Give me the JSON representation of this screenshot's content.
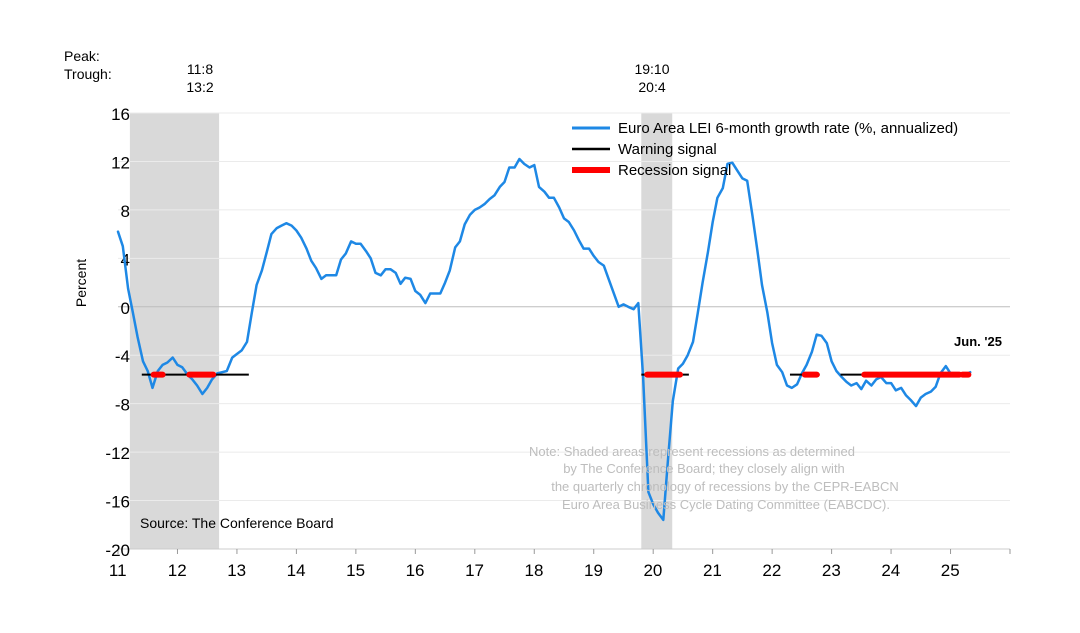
{
  "chart_data": {
    "type": "line",
    "ylabel": "Percent",
    "ylim": [
      -20,
      16
    ],
    "yticks": [
      16,
      12,
      8,
      4,
      0,
      -4,
      -8,
      -12,
      -16,
      -20
    ],
    "xlim": [
      2011,
      2026
    ],
    "xticks": [
      {
        "label": "11",
        "x": 2011.5
      },
      {
        "label": "12",
        "x": 2012.5
      },
      {
        "label": "13",
        "x": 2013.5
      },
      {
        "label": "14",
        "x": 2014.5
      },
      {
        "label": "15",
        "x": 2015.5
      },
      {
        "label": "16",
        "x": 2016.5
      },
      {
        "label": "17",
        "x": 2017.5
      },
      {
        "label": "18",
        "x": 2018.5
      },
      {
        "label": "19",
        "x": 2019.5
      },
      {
        "label": "20",
        "x": 2020.5
      },
      {
        "label": "21",
        "x": 2021.5
      },
      {
        "label": "22",
        "x": 2022.5
      },
      {
        "label": "23",
        "x": 2023.5
      },
      {
        "label": "24",
        "x": 2024.5
      },
      {
        "label": "25",
        "x": 2025.5
      }
    ],
    "peak_label": "Peak:",
    "trough_label": "Trough:",
    "recessions": [
      {
        "start": 2011.2,
        "end": 2012.7,
        "peak": "11:8",
        "trough": "13:2"
      },
      {
        "start": 2019.8,
        "end": 2020.32,
        "peak": "19:10",
        "trough": "20:4"
      }
    ],
    "series": [
      {
        "name": "Euro Area LEI 6-month growth rate (%, annualized)",
        "color": "#1e88e5",
        "points": [
          [
            2011.0,
            6.2
          ],
          [
            2011.08,
            5.0
          ],
          [
            2011.17,
            1.5
          ],
          [
            2011.25,
            -0.5
          ],
          [
            2011.33,
            -2.5
          ],
          [
            2011.42,
            -4.5
          ],
          [
            2011.5,
            -5.3
          ],
          [
            2011.58,
            -6.7
          ],
          [
            2011.67,
            -5.3
          ],
          [
            2011.75,
            -4.8
          ],
          [
            2011.83,
            -4.6
          ],
          [
            2011.92,
            -4.2
          ],
          [
            2012.0,
            -4.8
          ],
          [
            2012.08,
            -5.0
          ],
          [
            2012.17,
            -5.6
          ],
          [
            2012.25,
            -6.0
          ],
          [
            2012.33,
            -6.5
          ],
          [
            2012.42,
            -7.2
          ],
          [
            2012.5,
            -6.7
          ],
          [
            2012.58,
            -6.0
          ],
          [
            2012.67,
            -5.5
          ],
          [
            2012.75,
            -5.4
          ],
          [
            2012.83,
            -5.3
          ],
          [
            2012.92,
            -4.2
          ],
          [
            2013.0,
            -3.9
          ],
          [
            2013.08,
            -3.6
          ],
          [
            2013.17,
            -2.9
          ],
          [
            2013.25,
            -0.5
          ],
          [
            2013.33,
            1.8
          ],
          [
            2013.42,
            3.0
          ],
          [
            2013.5,
            4.5
          ],
          [
            2013.58,
            6.0
          ],
          [
            2013.67,
            6.5
          ],
          [
            2013.75,
            6.7
          ],
          [
            2013.83,
            6.9
          ],
          [
            2013.92,
            6.7
          ],
          [
            2014.0,
            6.3
          ],
          [
            2014.08,
            5.7
          ],
          [
            2014.17,
            4.8
          ],
          [
            2014.25,
            3.8
          ],
          [
            2014.33,
            3.2
          ],
          [
            2014.42,
            2.3
          ],
          [
            2014.5,
            2.6
          ],
          [
            2014.58,
            2.6
          ],
          [
            2014.67,
            2.6
          ],
          [
            2014.75,
            3.9
          ],
          [
            2014.83,
            4.4
          ],
          [
            2014.92,
            5.4
          ],
          [
            2015.0,
            5.2
          ],
          [
            2015.08,
            5.2
          ],
          [
            2015.17,
            4.6
          ],
          [
            2015.25,
            4.0
          ],
          [
            2015.33,
            2.8
          ],
          [
            2015.42,
            2.6
          ],
          [
            2015.5,
            3.1
          ],
          [
            2015.58,
            3.1
          ],
          [
            2015.67,
            2.8
          ],
          [
            2015.75,
            1.9
          ],
          [
            2015.83,
            2.4
          ],
          [
            2015.92,
            2.3
          ],
          [
            2016.0,
            1.3
          ],
          [
            2016.08,
            1.0
          ],
          [
            2016.17,
            0.3
          ],
          [
            2016.25,
            1.1
          ],
          [
            2016.33,
            1.1
          ],
          [
            2016.42,
            1.1
          ],
          [
            2016.5,
            2.0
          ],
          [
            2016.58,
            3.0
          ],
          [
            2016.67,
            4.9
          ],
          [
            2016.75,
            5.4
          ],
          [
            2016.83,
            6.8
          ],
          [
            2016.92,
            7.6
          ],
          [
            2017.0,
            8.0
          ],
          [
            2017.08,
            8.2
          ],
          [
            2017.17,
            8.5
          ],
          [
            2017.25,
            8.9
          ],
          [
            2017.33,
            9.2
          ],
          [
            2017.42,
            9.9
          ],
          [
            2017.5,
            10.3
          ],
          [
            2017.58,
            11.5
          ],
          [
            2017.67,
            11.5
          ],
          [
            2017.75,
            12.2
          ],
          [
            2017.83,
            11.8
          ],
          [
            2017.92,
            11.5
          ],
          [
            2018.0,
            11.7
          ],
          [
            2018.08,
            9.9
          ],
          [
            2018.17,
            9.5
          ],
          [
            2018.25,
            9.0
          ],
          [
            2018.33,
            9.0
          ],
          [
            2018.42,
            8.2
          ],
          [
            2018.5,
            7.3
          ],
          [
            2018.58,
            7.0
          ],
          [
            2018.67,
            6.3
          ],
          [
            2018.75,
            5.5
          ],
          [
            2018.83,
            4.8
          ],
          [
            2018.92,
            4.8
          ],
          [
            2019.0,
            4.2
          ],
          [
            2019.08,
            3.7
          ],
          [
            2019.17,
            3.4
          ],
          [
            2019.25,
            2.3
          ],
          [
            2019.33,
            1.2
          ],
          [
            2019.42,
            0.0
          ],
          [
            2019.5,
            0.2
          ],
          [
            2019.58,
            0.0
          ],
          [
            2019.67,
            -0.2
          ],
          [
            2019.75,
            0.3
          ],
          [
            2019.83,
            -5.8
          ],
          [
            2019.92,
            -15.3
          ],
          [
            2020.0,
            -16.3
          ],
          [
            2020.08,
            -17.0
          ],
          [
            2020.17,
            -17.6
          ],
          [
            2020.25,
            -12.5
          ],
          [
            2020.33,
            -7.8
          ],
          [
            2020.42,
            -5.1
          ],
          [
            2020.5,
            -4.7
          ],
          [
            2020.58,
            -4.0
          ],
          [
            2020.67,
            -2.9
          ],
          [
            2020.75,
            -0.5
          ],
          [
            2020.83,
            2.0
          ],
          [
            2020.92,
            4.5
          ],
          [
            2021.0,
            7.0
          ],
          [
            2021.08,
            9.0
          ],
          [
            2021.17,
            9.8
          ],
          [
            2021.25,
            11.8
          ],
          [
            2021.33,
            11.9
          ],
          [
            2021.42,
            11.2
          ],
          [
            2021.5,
            10.6
          ],
          [
            2021.58,
            10.4
          ],
          [
            2021.67,
            7.5
          ],
          [
            2021.75,
            4.7
          ],
          [
            2021.83,
            1.8
          ],
          [
            2021.92,
            -0.5
          ],
          [
            2022.0,
            -3.0
          ],
          [
            2022.08,
            -4.8
          ],
          [
            2022.17,
            -5.4
          ],
          [
            2022.25,
            -6.5
          ],
          [
            2022.33,
            -6.7
          ],
          [
            2022.42,
            -6.4
          ],
          [
            2022.5,
            -5.5
          ],
          [
            2022.58,
            -4.8
          ],
          [
            2022.67,
            -3.7
          ],
          [
            2022.75,
            -2.3
          ],
          [
            2022.83,
            -2.4
          ],
          [
            2022.92,
            -3.0
          ],
          [
            2023.0,
            -4.5
          ],
          [
            2023.08,
            -5.3
          ],
          [
            2023.17,
            -5.8
          ],
          [
            2023.25,
            -6.2
          ],
          [
            2023.33,
            -6.5
          ],
          [
            2023.42,
            -6.3
          ],
          [
            2023.5,
            -6.8
          ],
          [
            2023.58,
            -6.1
          ],
          [
            2023.67,
            -6.5
          ],
          [
            2023.75,
            -6.0
          ],
          [
            2023.83,
            -5.8
          ],
          [
            2023.92,
            -6.3
          ],
          [
            2024.0,
            -6.3
          ],
          [
            2024.08,
            -6.9
          ],
          [
            2024.17,
            -6.7
          ],
          [
            2024.25,
            -7.3
          ],
          [
            2024.33,
            -7.7
          ],
          [
            2024.42,
            -8.2
          ],
          [
            2024.5,
            -7.5
          ],
          [
            2024.58,
            -7.2
          ],
          [
            2024.67,
            -7.0
          ],
          [
            2024.75,
            -6.6
          ],
          [
            2024.83,
            -5.5
          ],
          [
            2024.92,
            -4.9
          ],
          [
            2025.0,
            -5.5
          ],
          [
            2025.08,
            -5.6
          ],
          [
            2025.17,
            -5.5
          ],
          [
            2025.25,
            -5.6
          ],
          [
            2025.33,
            -5.4
          ]
        ]
      }
    ],
    "warning_signal": {
      "name": "Warning signal",
      "color": "#000000",
      "value": -5.6,
      "segments": [
        [
          2011.4,
          2013.2
        ],
        [
          2019.8,
          2020.6
        ],
        [
          2022.3,
          2022.8
        ],
        [
          2023.15,
          2025.3
        ]
      ]
    },
    "recession_signal": {
      "name": "Recession signal",
      "color": "#ff0000",
      "value": -5.6,
      "segments": [
        [
          2011.6,
          2011.75
        ],
        [
          2012.2,
          2012.6
        ],
        [
          2019.9,
          2020.45
        ],
        [
          2022.55,
          2022.75
        ],
        [
          2023.55,
          2025.15
        ],
        [
          2025.2,
          2025.3
        ]
      ]
    },
    "latest_label": "Jun. '25",
    "source": "Source: The Conference Board",
    "note": [
      "Note: Shaded areas represent recessions as determined",
      "by The Conference Board; they closely align with",
      "the quarterly chronology of recessions by the CEPR-EABCN",
      "Euro Area Business Cycle Dating Committee (EABCDC)."
    ]
  }
}
